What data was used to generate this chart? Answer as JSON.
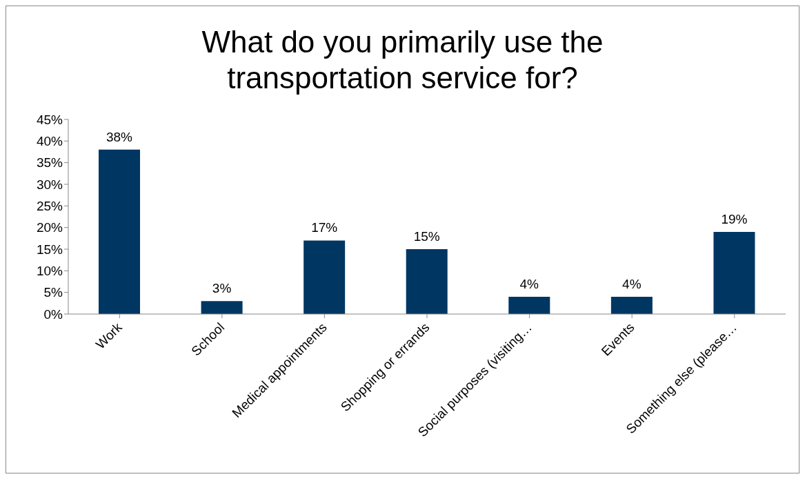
{
  "chart_data": {
    "type": "bar",
    "title": "What do you primarily use the transportation service for?",
    "categories": [
      "Work",
      "School",
      "Medical appointments",
      "Shopping or errands",
      "Social purposes (visiting…",
      "Events",
      "Something else (please…"
    ],
    "values": [
      38,
      3,
      17,
      15,
      4,
      4,
      19
    ],
    "value_labels": [
      "38%",
      "3%",
      "17%",
      "15%",
      "4%",
      "4%",
      "19%"
    ],
    "color": "#003662",
    "ylim": [
      0,
      45
    ],
    "yticks": [
      {
        "value": 0,
        "label": "0%"
      },
      {
        "value": 5,
        "label": "5%"
      },
      {
        "value": 10,
        "label": "10%"
      },
      {
        "value": 15,
        "label": "15%"
      },
      {
        "value": 20,
        "label": "20%"
      },
      {
        "value": 25,
        "label": "25%"
      },
      {
        "value": 30,
        "label": "30%"
      },
      {
        "value": 35,
        "label": "35%"
      },
      {
        "value": 40,
        "label": "40%"
      },
      {
        "value": 45,
        "label": "45%"
      }
    ],
    "grid": false
  }
}
